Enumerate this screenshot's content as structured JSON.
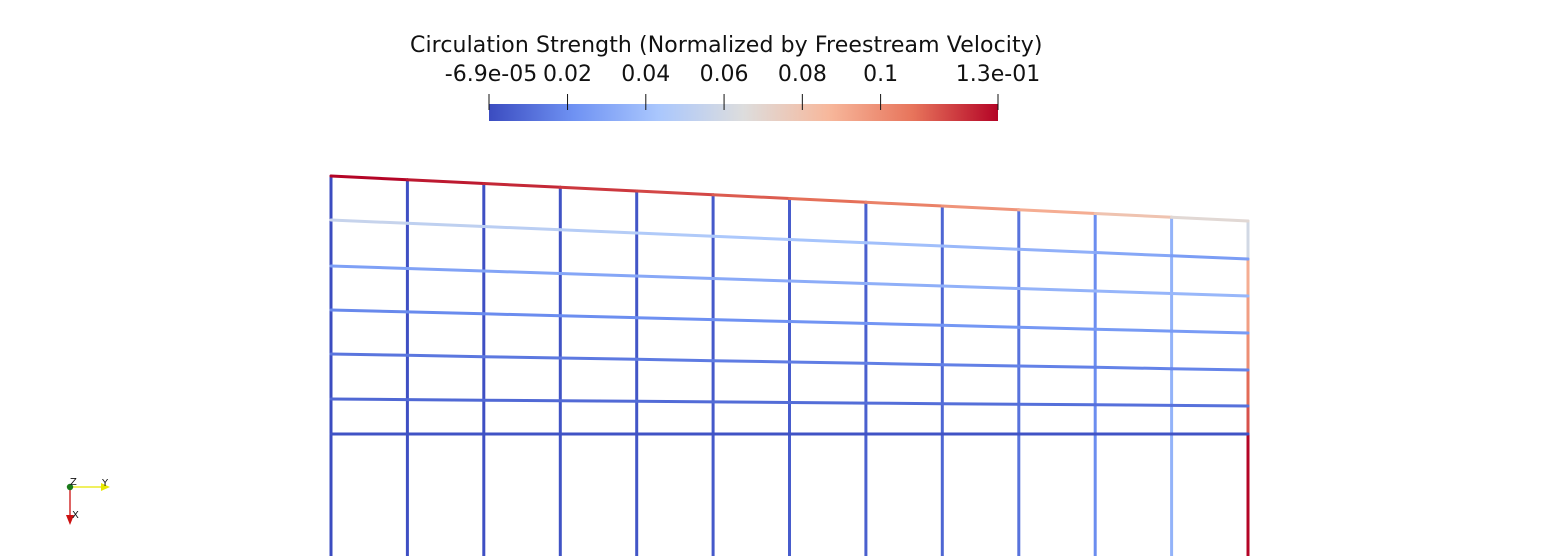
{
  "colorbar": {
    "title": "Circulation Strength (Normalized by Freestream Velocity)",
    "range": [
      -6.9e-05,
      0.13
    ],
    "ticks": [
      {
        "value": -6.9e-05,
        "label": "-6.9e-05"
      },
      {
        "value": 0.02,
        "label": "0.02"
      },
      {
        "value": 0.04,
        "label": "0.04"
      },
      {
        "value": 0.06,
        "label": "0.06"
      },
      {
        "value": 0.08,
        "label": "0.08"
      },
      {
        "value": 0.1,
        "label": "0.1"
      },
      {
        "value": 0.13,
        "label": "1.3e-01"
      }
    ],
    "colormap": [
      "#3b4cc0",
      "#6f92f3",
      "#aac7fd",
      "#dddddd",
      "#f7b89c",
      "#e7745b",
      "#b40426"
    ]
  },
  "orientation_axes": {
    "z_label": "Z",
    "y_label": "Y",
    "x_label": "X",
    "colors": {
      "z": "#1a7a1a",
      "y": "#e8e800",
      "x": "#cc1111"
    }
  },
  "lattice": {
    "spanwise_stations": 13,
    "chordwise_rows": 8,
    "trailing_legs": true,
    "values": {
      "leading_edge": [
        0.13,
        0.126,
        0.123,
        0.12,
        0.117,
        0.113,
        0.109,
        0.104,
        0.098,
        0.09,
        0.08,
        0.068
      ],
      "spanwise_row_1": [
        0.055,
        0.052,
        0.05,
        0.048,
        0.046,
        0.044,
        0.042,
        0.04,
        0.037,
        0.034,
        0.03,
        0.026
      ],
      "spanwise_rows_2_6": [
        0.032,
        0.022,
        0.015,
        0.01,
        0.006
      ],
      "spanwise_row_7": 0.002,
      "chordwise_legs": [
        0.0,
        0.001,
        0.001,
        0.002,
        0.003,
        0.004,
        0.005,
        0.006,
        0.008,
        0.012,
        0.02,
        0.035,
        0.13
      ],
      "right_edge_tip": [
        0.06,
        0.09,
        0.095,
        0.1,
        0.11,
        0.115,
        0.12,
        0.13
      ]
    }
  }
}
